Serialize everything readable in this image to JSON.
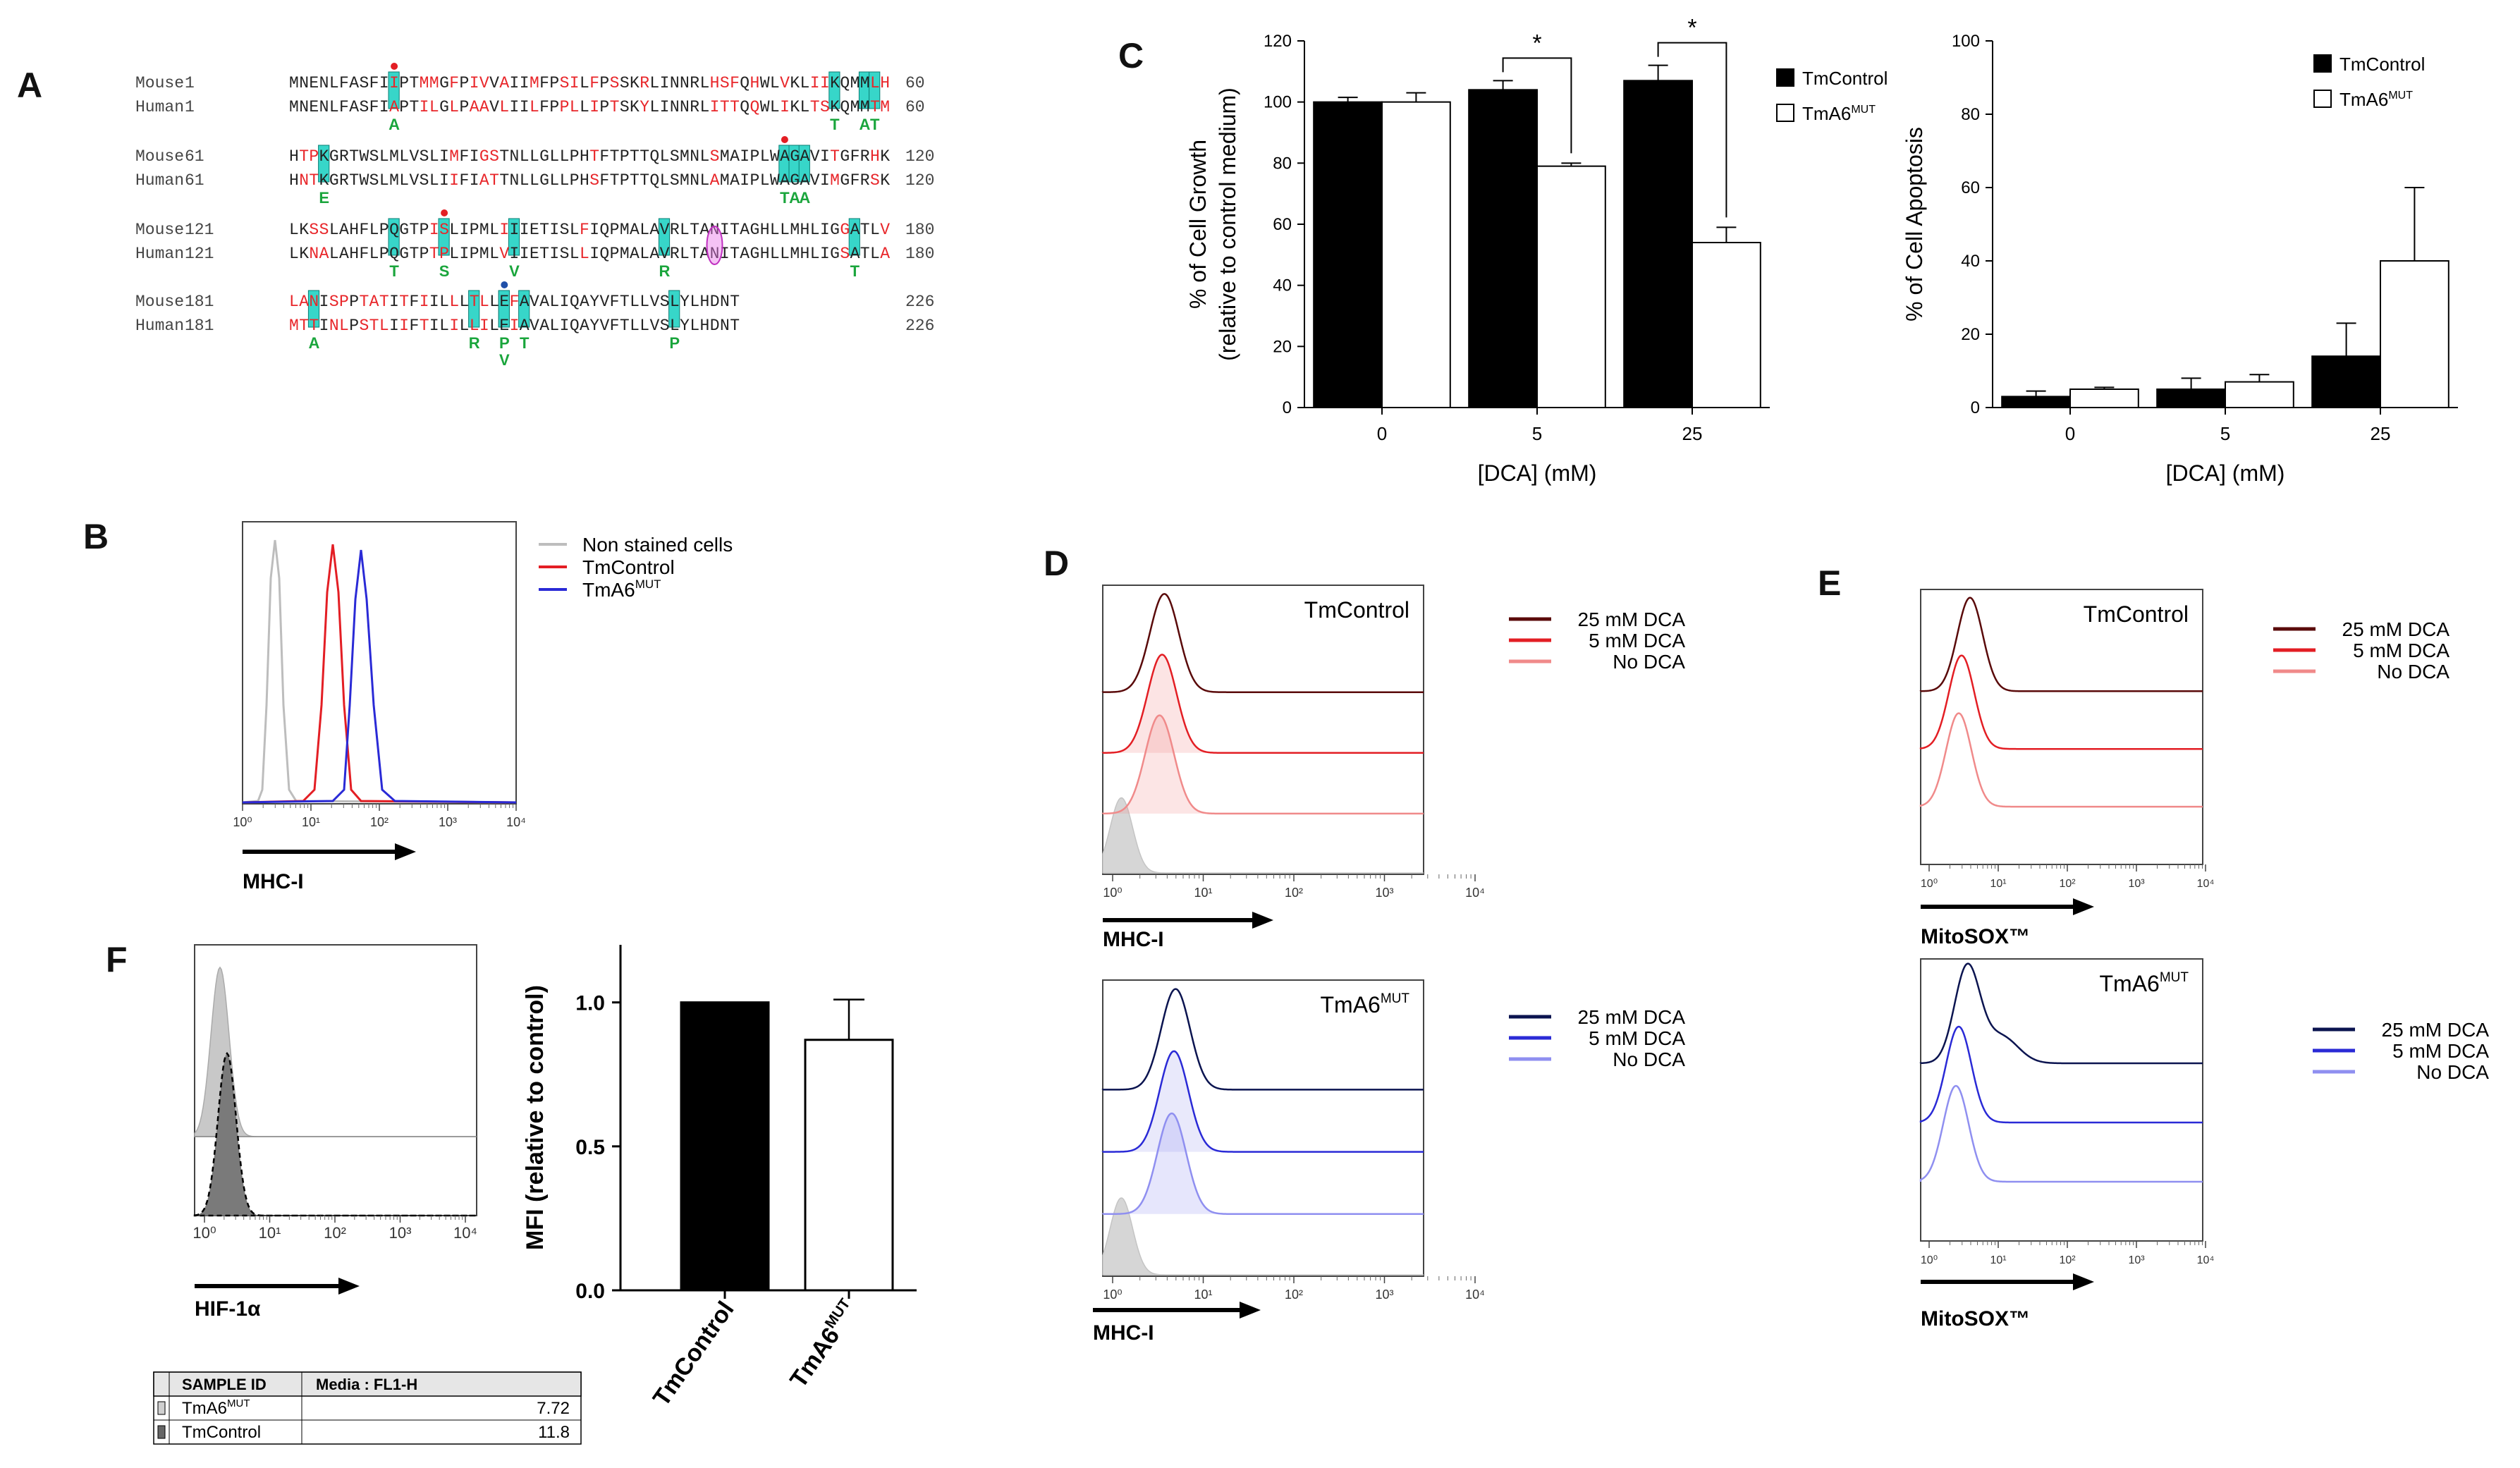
{
  "panel_labels": {
    "a": "A",
    "b": "B",
    "c": "C",
    "d": "D",
    "e": "E",
    "f": "F"
  },
  "panel_a": {
    "blocks": [
      {
        "rows": [
          {
            "species": "Mouse",
            "start": "1",
            "seq": "MNENLFASFIIPTMMGFPIVVAIIMFPSILFPSSKRLINNRLHSFQHWLVKLIIKQMMLH",
            "end": "60"
          },
          {
            "species": "Human",
            "start": "1",
            "seq": "MNENLFASFIAPTILGLPAAVLIILFPPLLIPTSKYLINNRLITTQQWLIKLTSKQMMTM",
            "end": "60"
          }
        ],
        "subs": [
          {
            "letter": "A",
            "pos": 11
          },
          {
            "letter": "T",
            "pos": 55
          },
          {
            "letter": "A",
            "pos": 58
          },
          {
            "letter": "T",
            "pos": 59
          }
        ]
      },
      {
        "rows": [
          {
            "species": "Mouse",
            "start": "61",
            "seq": "HTPKGRTWSLMLVSLIMFIGSTNLLGLLPHTFTPTTQLSMNLSMAIPLWAGAVITGFRHK",
            "end": "120"
          },
          {
            "species": "Human",
            "start": "61",
            "seq": "HNTKGRTWSLMLVSLIIFIATTNLLGLLPHSFTPTTQLSMNLAMAIPLWAGAVIMGFRSK",
            "end": "120"
          }
        ],
        "subs": [
          {
            "letter": "E",
            "pos": 4
          },
          {
            "letter": "T",
            "pos": 50
          },
          {
            "letter": "A",
            "pos": 51
          },
          {
            "letter": "A",
            "pos": 52
          }
        ]
      },
      {
        "rows": [
          {
            "species": "Mouse",
            "start": "121",
            "seq": "LKSSLAHFLPQGTPISLIPMLIIIETISLFIQPMALAVRLTANITAGHLLMHLIGGATLV",
            "end": "180"
          },
          {
            "species": "Human",
            "start": "121",
            "seq": "LKNALAHFLPQGTPTPLIPMLVIIETISLLIQPMALAVRLTANITAGHLLMHLIGSATLA",
            "end": "180"
          }
        ],
        "subs": [
          {
            "letter": "T",
            "pos": 11
          },
          {
            "letter": "S",
            "pos": 16
          },
          {
            "letter": "V",
            "pos": 23
          },
          {
            "letter": "R",
            "pos": 38
          },
          {
            "letter": "T",
            "pos": 57
          }
        ]
      },
      {
        "rows": [
          {
            "species": "Mouse",
            "start": "181",
            "seq": "LANISPPTATITFIILLLTLLEFAVALIQAYVFTLLVSLYLHDNT",
            "end": "226"
          },
          {
            "species": "Human",
            "start": "181",
            "seq": "MTTINLPSTLIIFTILILLILEIAVALIQAYVFTLLVSLYLHDNT",
            "end": "226"
          }
        ],
        "subs": [
          {
            "letter": "A",
            "pos": 3
          },
          {
            "letter": "R",
            "pos": 19
          },
          {
            "letter": "P",
            "pos": 22
          },
          {
            "letter": "V",
            "pos": 22
          },
          {
            "letter": "T",
            "pos": 24
          },
          {
            "letter": "P",
            "pos": 39
          }
        ]
      }
    ]
  },
  "panel_b": {
    "legend": [
      "Non stained cells",
      "TmControl",
      "TmA6MUT"
    ],
    "xlabel": "MHC-I",
    "ticks": [
      "10⁰",
      "10¹",
      "10²",
      "10³",
      "10⁴"
    ]
  },
  "chart_data": [
    {
      "type": "bar",
      "title": "",
      "ylabel": "% of Cell Growth",
      "ylabel2": "(relative to control medium)",
      "xlabel": "[DCA] (mM)",
      "categories": [
        "0",
        "5",
        "25"
      ],
      "ylim": [
        0,
        120
      ],
      "yticks": [
        "0",
        "20",
        "40",
        "60",
        "80",
        "100",
        "120"
      ],
      "series": [
        {
          "name": "TmControl",
          "values": [
            100,
            104,
            107
          ],
          "errors": [
            1.5,
            3,
            5
          ]
        },
        {
          "name": "TmA6MUT",
          "values": [
            100,
            79,
            54
          ],
          "errors": [
            3,
            1,
            5
          ]
        }
      ],
      "annotations": [
        "*",
        "*"
      ]
    },
    {
      "type": "bar",
      "title": "",
      "ylabel": "% of Cell Apoptosis",
      "xlabel": "[DCA] (mM)",
      "categories": [
        "0",
        "5",
        "25"
      ],
      "ylim": [
        0,
        100
      ],
      "yticks": [
        "0",
        "20",
        "40",
        "60",
        "80",
        "100"
      ],
      "series": [
        {
          "name": "TmControl",
          "values": [
            3,
            5,
            14
          ],
          "errors": [
            1.5,
            3,
            9
          ]
        },
        {
          "name": "TmA6MUT",
          "values": [
            5,
            7,
            40
          ],
          "errors": [
            0.5,
            2,
            20
          ]
        }
      ]
    },
    {
      "type": "bar",
      "title": "",
      "ylabel": "MFI (relative to control)",
      "categories": [
        "TmControl",
        "TmA6MUT"
      ],
      "ylim": [
        0,
        1.2
      ],
      "yticks": [
        "0.0",
        "0.5",
        "1.0"
      ],
      "series": [
        {
          "name": "MFI",
          "values": [
            1.0,
            0.87
          ],
          "errors": [
            0,
            0.14
          ]
        }
      ]
    }
  ],
  "panel_d": {
    "top_title": "TmControl",
    "bottom_title": "TmA6",
    "bottom_sup": "MUT",
    "legend_top": [
      "25 mM DCA",
      "5 mM DCA",
      "No DCA"
    ],
    "legend_bottom": [
      "25 mM DCA",
      "5 mM DCA",
      "No DCA"
    ],
    "xlabel": "MHC-I",
    "ticks": [
      "10⁰",
      "10¹",
      "10²",
      "10³",
      "10⁴"
    ]
  },
  "panel_e": {
    "top_title": "TmControl",
    "bottom_title": "TmA6",
    "bottom_sup": "MUT",
    "legend_top": [
      "25 mM DCA",
      "5 mM DCA",
      "No DCA"
    ],
    "legend_bottom": [
      "25 mM DCA",
      "5 mM DCA",
      "No DCA"
    ],
    "xlabel": "MitoSOX™",
    "ticks": [
      "10⁰",
      "10¹",
      "10²",
      "10³",
      "10⁴"
    ]
  },
  "panel_f": {
    "xlabel": "HIF-1α",
    "ticks": [
      "10⁰",
      "10¹",
      "10²",
      "10³",
      "10⁴"
    ],
    "table": {
      "headers": [
        "SAMPLE ID",
        "Media : FL1-H"
      ],
      "rows": [
        {
          "name": "TmA6",
          "sup": "MUT",
          "value": "7.72"
        },
        {
          "name": "TmControl",
          "sup": "",
          "value": "11.8"
        }
      ]
    }
  },
  "colors": {
    "mouse_red": "#e8262a",
    "seq_black": "#222222",
    "highlight": "#37d6c9",
    "sub_green": "#1aa53c",
    "dark_red": "#5a0a0a",
    "red": "#e31e24",
    "pink": "#f08a8a",
    "navy": "#0b1450",
    "blue": "#2a2ad6",
    "light_blue": "#8f8ff0",
    "grey": "#cfcfcf"
  },
  "sup_mut": "MUT",
  "mid_dot": "•"
}
